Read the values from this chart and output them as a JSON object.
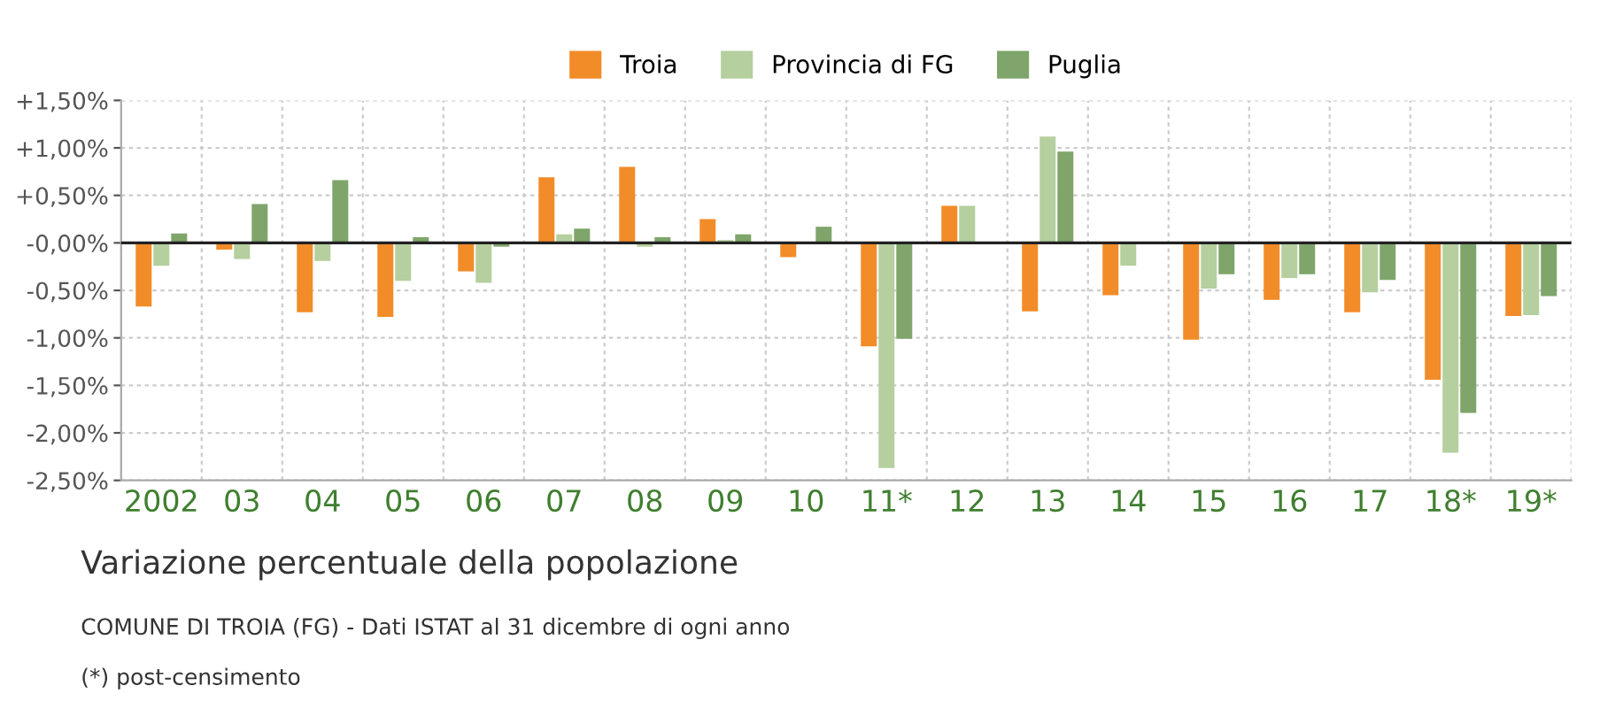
{
  "chart_data": {
    "type": "bar",
    "title": "Variazione percentuale della popolazione",
    "annotations": [
      "COMUNE DI TROIA (FG) - Dati ISTAT al 31 dicembre di ogni anno",
      "(*) post-censimento"
    ],
    "categories": [
      "2002",
      "03",
      "04",
      "05",
      "06",
      "07",
      "08",
      "09",
      "10",
      "11*",
      "12",
      "13",
      "14",
      "15",
      "16",
      "17",
      "18*",
      "19*"
    ],
    "series": [
      {
        "name": "Troia",
        "color": "#f28c28",
        "values": [
          -0.67,
          -0.07,
          -0.73,
          -0.78,
          -0.3,
          0.69,
          0.8,
          0.25,
          -0.15,
          -1.09,
          0.39,
          -0.72,
          -0.55,
          -1.02,
          -0.6,
          -0.73,
          -1.44,
          -0.77
        ]
      },
      {
        "name": "Provincia di FG",
        "color": "#b5cf9f",
        "values": [
          -0.24,
          -0.17,
          -0.19,
          -0.4,
          -0.42,
          0.09,
          -0.04,
          0.03,
          0.0,
          -2.37,
          0.39,
          1.12,
          -0.24,
          -0.48,
          -0.37,
          -0.52,
          -2.21,
          -0.76
        ]
      },
      {
        "name": "Puglia",
        "color": "#7fa56a",
        "values": [
          0.1,
          0.41,
          0.66,
          0.06,
          -0.04,
          0.15,
          0.06,
          0.09,
          0.17,
          -1.01,
          0.0,
          0.96,
          0.0,
          -0.33,
          -0.33,
          -0.39,
          -1.79,
          -0.56
        ]
      }
    ],
    "ylim": [
      -2.5,
      1.5
    ],
    "yticks": [
      {
        "value": 1.5,
        "label": "+1,50%"
      },
      {
        "value": 1.0,
        "label": "+1,00%"
      },
      {
        "value": 0.5,
        "label": "+0,50%"
      },
      {
        "value": 0,
        "label": "-0,00%"
      },
      {
        "value": -0.5,
        "label": "-0,50%"
      },
      {
        "value": -1.0,
        "label": "-1,00%"
      },
      {
        "value": -1.5,
        "label": "-1,50%"
      },
      {
        "value": -2.0,
        "label": "-2,00%"
      },
      {
        "value": -2.5,
        "label": "-2,50%"
      }
    ],
    "ref_lines": [
      {
        "axis": "y",
        "value": 0,
        "color": "#222222"
      }
    ],
    "grid": true,
    "legend": "top"
  }
}
